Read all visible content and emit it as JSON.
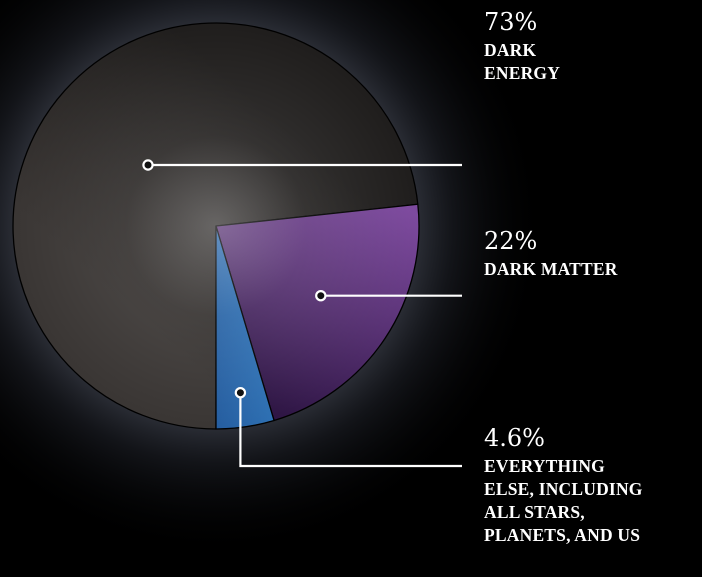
{
  "chart_data": {
    "type": "pie",
    "title": "",
    "slices": [
      {
        "value": 73,
        "percent_label": "73%",
        "label_lines": [
          "DARK",
          "ENERGY"
        ],
        "color_start": "#3a3634",
        "color_end": "#201e1d"
      },
      {
        "value": 22,
        "percent_label": "22%",
        "label_lines": [
          "DARK MATTER"
        ],
        "color_start": "#7d4a9e",
        "color_end": "#2f1645"
      },
      {
        "value": 4.6,
        "percent_label": "4.6%",
        "label_lines": [
          "EVERYTHING",
          "ELSE, INCLUDING",
          "ALL STARS,",
          "PLANETS, AND US"
        ],
        "color_start": "#3d8fd3",
        "color_end": "#173f80"
      }
    ],
    "background_color": "#000000",
    "glow_color": "#aab2c6",
    "label_color": "#ffffff"
  }
}
